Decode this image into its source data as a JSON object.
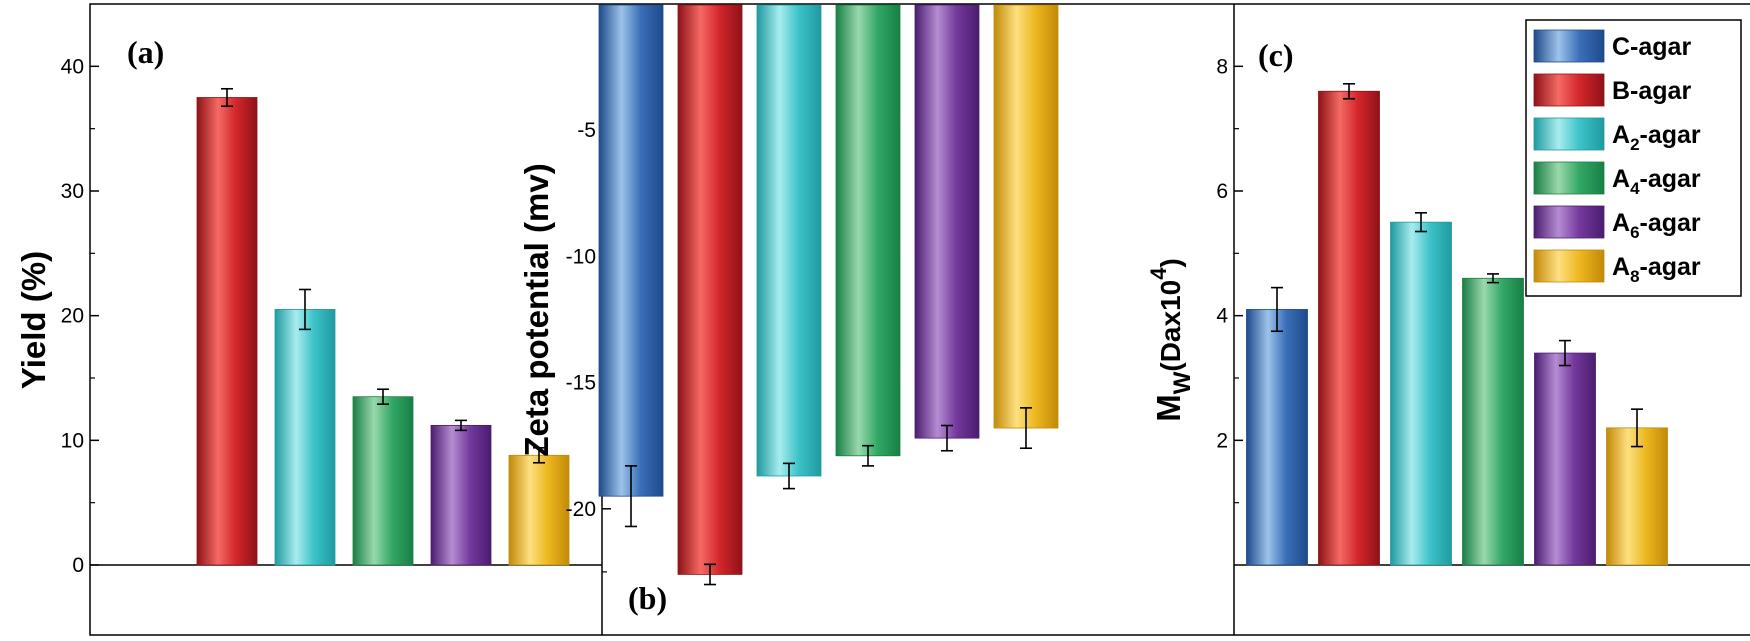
{
  "chart_data": [
    {
      "panel": "(a)",
      "type": "bar",
      "categories": [
        "C-agar",
        "B-agar",
        "A2-agar",
        "A4-agar",
        "A6-agar",
        "A8-agar"
      ],
      "values": [
        null,
        37.5,
        20.5,
        13.5,
        11.2,
        8.8
      ],
      "errors": [
        null,
        0.7,
        1.6,
        0.6,
        0.4,
        0.6
      ],
      "ylabel": "Yield (%)",
      "ylim": [
        0,
        45
      ],
      "yticks": [
        0,
        10,
        20,
        30,
        40
      ],
      "ytick_labels": [
        "0",
        "10",
        "20",
        "30",
        "40"
      ]
    },
    {
      "panel": "(b)",
      "type": "bar",
      "categories": [
        "C-agar",
        "B-agar",
        "A2-agar",
        "A4-agar",
        "A6-agar",
        "A8-agar"
      ],
      "values": [
        -19.5,
        -22.6,
        -18.7,
        -17.9,
        -17.2,
        -16.8
      ],
      "errors": [
        1.2,
        0.4,
        0.5,
        0.4,
        0.5,
        0.8
      ],
      "ylabel": "Zeta potential (mv)",
      "ylim": [
        -25,
        0
      ],
      "yticks": [
        -5,
        -10,
        -15,
        -20
      ],
      "ytick_labels": [
        "-5",
        "-10",
        "-15",
        "-20"
      ]
    },
    {
      "panel": "(c)",
      "type": "bar",
      "categories": [
        "C-agar",
        "B-agar",
        "A2-agar",
        "A4-agar",
        "A6-agar",
        "A8-agar"
      ],
      "values": [
        4.1,
        7.6,
        5.5,
        4.6,
        3.4,
        2.2
      ],
      "errors": [
        0.35,
        0.12,
        0.15,
        0.07,
        0.2,
        0.3
      ],
      "ylabel_main": "M",
      "ylabel_sub": "W",
      "ylabel_unit": "(Dax10",
      "ylabel_sup": "4",
      "ylabel_close": ")",
      "ylim": [
        0,
        9
      ],
      "yticks": [
        2,
        4,
        6,
        8
      ],
      "ytick_labels": [
        "2",
        "4",
        "6",
        "8"
      ]
    }
  ],
  "legend": [
    {
      "main": "C-agar",
      "sub": "",
      "rest": "",
      "color": "#3a6fb8"
    },
    {
      "main": "B-agar",
      "sub": "",
      "rest": "",
      "color": "#d3262b"
    },
    {
      "main": "A",
      "sub": "2",
      "rest": "-agar",
      "color": "#3cc3c8"
    },
    {
      "main": "A",
      "sub": "4",
      "rest": "-agar",
      "color": "#32a865"
    },
    {
      "main": "A",
      "sub": "6",
      "rest": "-agar",
      "color": "#73399c"
    },
    {
      "main": "A",
      "sub": "8",
      "rest": "-agar",
      "color": "#ecb71f"
    }
  ],
  "colors": [
    "#3a6fb8",
    "#d3262b",
    "#3cc3c8",
    "#32a865",
    "#73399c",
    "#ecb71f"
  ],
  "colors_light": [
    "#9dc3ea",
    "#f46a64",
    "#a8ecee",
    "#9ad8ac",
    "#b58dd2",
    "#fde080"
  ],
  "colors_dark": [
    "#1e4a8a",
    "#8e1218",
    "#1f9aa0",
    "#197f45",
    "#4b1c70",
    "#c28a08"
  ]
}
